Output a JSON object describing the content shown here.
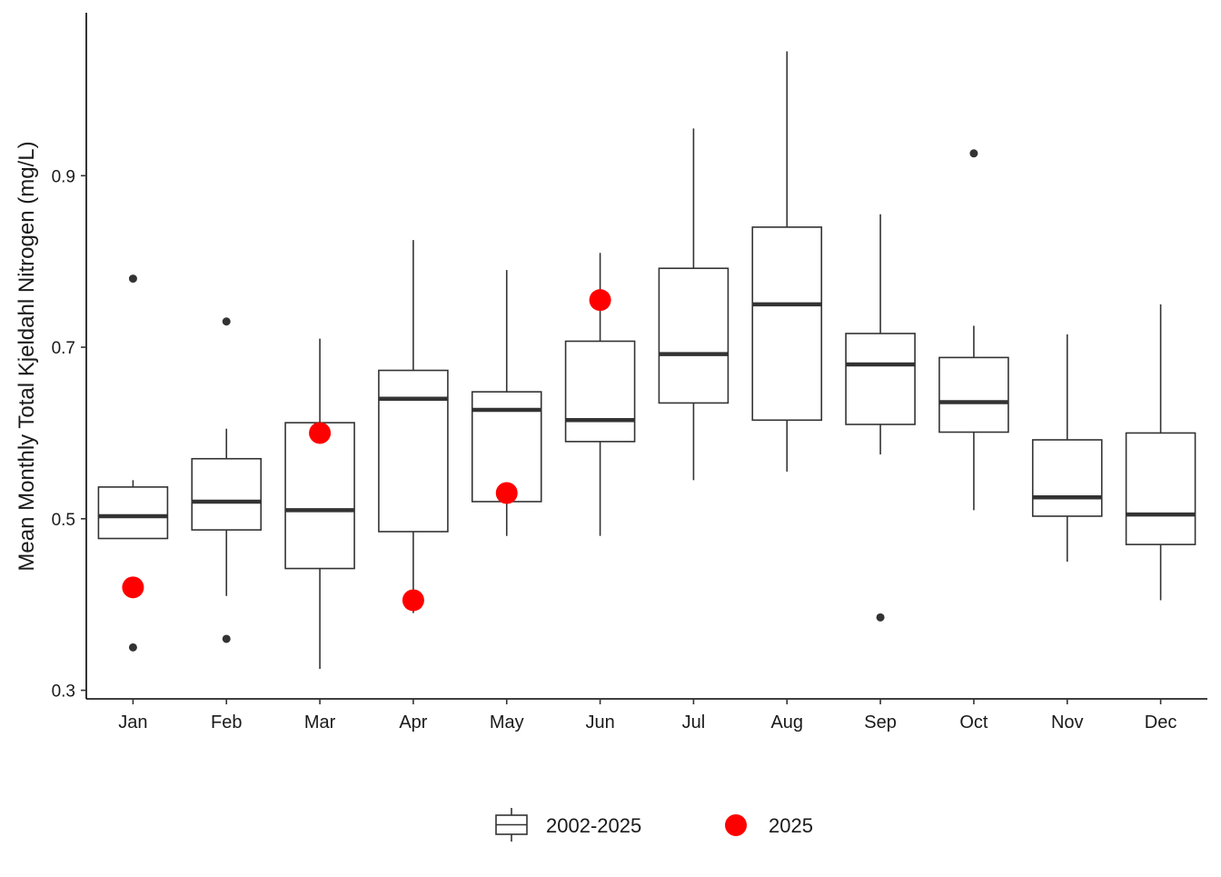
{
  "chart_data": {
    "type": "boxplot",
    "title": "",
    "ylabel": "Mean Monthly Total Kjeldahl Nitrogen (mg/L)",
    "xlabel": "",
    "ylim": [
      0.29,
      1.09
    ],
    "yticks": [
      0.3,
      0.5,
      0.7,
      0.9
    ],
    "ytick_labels": [
      "0.3",
      "0.5",
      "0.7",
      "0.9"
    ],
    "categories": [
      "Jan",
      "Feb",
      "Mar",
      "Apr",
      "May",
      "Jun",
      "Jul",
      "Aug",
      "Sep",
      "Oct",
      "Nov",
      "Dec"
    ],
    "legend": {
      "position": "bottom",
      "entries": [
        {
          "label": "2002-2025",
          "kind": "box"
        },
        {
          "label": "2025",
          "kind": "point"
        }
      ]
    },
    "box_series": {
      "name": "2002-2025",
      "color": "#333333",
      "boxes": [
        {
          "month": "Jan",
          "whisker_low": 0.477,
          "q1": 0.477,
          "median": 0.503,
          "q3": 0.537,
          "whisker_high": 0.545,
          "outliers": [
            0.78,
            0.35
          ]
        },
        {
          "month": "Feb",
          "whisker_low": 0.41,
          "q1": 0.487,
          "median": 0.52,
          "q3": 0.57,
          "whisker_high": 0.605,
          "outliers": [
            0.73,
            0.36
          ]
        },
        {
          "month": "Mar",
          "whisker_low": 0.325,
          "q1": 0.442,
          "median": 0.51,
          "q3": 0.612,
          "whisker_high": 0.71,
          "outliers": []
        },
        {
          "month": "Apr",
          "whisker_low": 0.39,
          "q1": 0.485,
          "median": 0.64,
          "q3": 0.673,
          "whisker_high": 0.825,
          "outliers": []
        },
        {
          "month": "May",
          "whisker_low": 0.48,
          "q1": 0.52,
          "median": 0.627,
          "q3": 0.648,
          "whisker_high": 0.79,
          "outliers": []
        },
        {
          "month": "Jun",
          "whisker_low": 0.48,
          "q1": 0.59,
          "median": 0.615,
          "q3": 0.707,
          "whisker_high": 0.81,
          "outliers": []
        },
        {
          "month": "Jul",
          "whisker_low": 0.545,
          "q1": 0.635,
          "median": 0.692,
          "q3": 0.792,
          "whisker_high": 0.955,
          "outliers": []
        },
        {
          "month": "Aug",
          "whisker_low": 0.555,
          "q1": 0.615,
          "median": 0.75,
          "q3": 0.84,
          "whisker_high": 1.045,
          "outliers": []
        },
        {
          "month": "Sep",
          "whisker_low": 0.575,
          "q1": 0.61,
          "median": 0.68,
          "q3": 0.716,
          "whisker_high": 0.855,
          "outliers": [
            0.385
          ]
        },
        {
          "month": "Oct",
          "whisker_low": 0.51,
          "q1": 0.601,
          "median": 0.636,
          "q3": 0.688,
          "whisker_high": 0.725,
          "outliers": [
            0.926
          ]
        },
        {
          "month": "Nov",
          "whisker_low": 0.45,
          "q1": 0.503,
          "median": 0.525,
          "q3": 0.592,
          "whisker_high": 0.715,
          "outliers": []
        },
        {
          "month": "Dec",
          "whisker_low": 0.405,
          "q1": 0.47,
          "median": 0.505,
          "q3": 0.6,
          "whisker_high": 0.75,
          "outliers": []
        }
      ]
    },
    "point_series": {
      "name": "2025",
      "color": "#ff0000",
      "points": [
        {
          "month": "Jan",
          "value": 0.42
        },
        {
          "month": "Mar",
          "value": 0.6
        },
        {
          "month": "Apr",
          "value": 0.405
        },
        {
          "month": "May",
          "value": 0.53
        },
        {
          "month": "Jun",
          "value": 0.755
        }
      ]
    }
  }
}
